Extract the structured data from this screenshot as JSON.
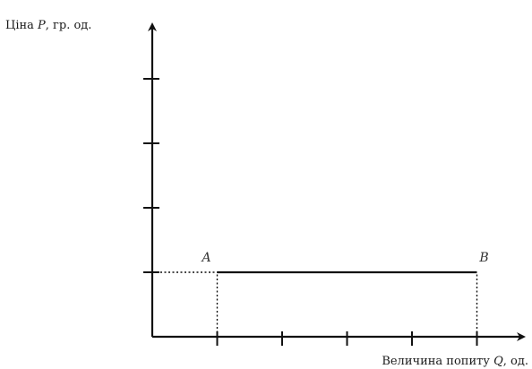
{
  "chart_data": {
    "type": "line",
    "title": "",
    "ylabel": {
      "prefix": "Ціна ",
      "symbol": "P",
      "suffix": ", гр. од."
    },
    "xlabel": {
      "prefix": "Величина попиту ",
      "symbol": "Q",
      "suffix": ", од."
    },
    "xlim": [
      0,
      5.5
    ],
    "ylim": [
      0,
      5.5
    ],
    "x_ticks": [
      1,
      2,
      3,
      4,
      5
    ],
    "y_ticks": [
      1,
      2,
      3,
      4
    ],
    "tick_labels_shown": false,
    "grid": false,
    "legend": "none",
    "series": [
      {
        "values": [
          {
            "x": 1,
            "y": 1
          },
          {
            "x": 5,
            "y": 1
          }
        ]
      }
    ],
    "points": [
      {
        "label": "A",
        "x": 1,
        "y": 1
      },
      {
        "label": "B",
        "x": 5,
        "y": 1
      }
    ],
    "guides": [
      {
        "from": {
          "x": 0,
          "y": 1
        },
        "to": {
          "x": 1,
          "y": 1
        }
      },
      {
        "from": {
          "x": 1,
          "y": 0
        },
        "to": {
          "x": 1,
          "y": 1
        }
      },
      {
        "from": {
          "x": 5,
          "y": 0
        },
        "to": {
          "x": 5,
          "y": 1
        }
      }
    ]
  },
  "colors": {
    "ink": "#111111",
    "label": "#1a1a1a",
    "point_label": "#333333"
  }
}
